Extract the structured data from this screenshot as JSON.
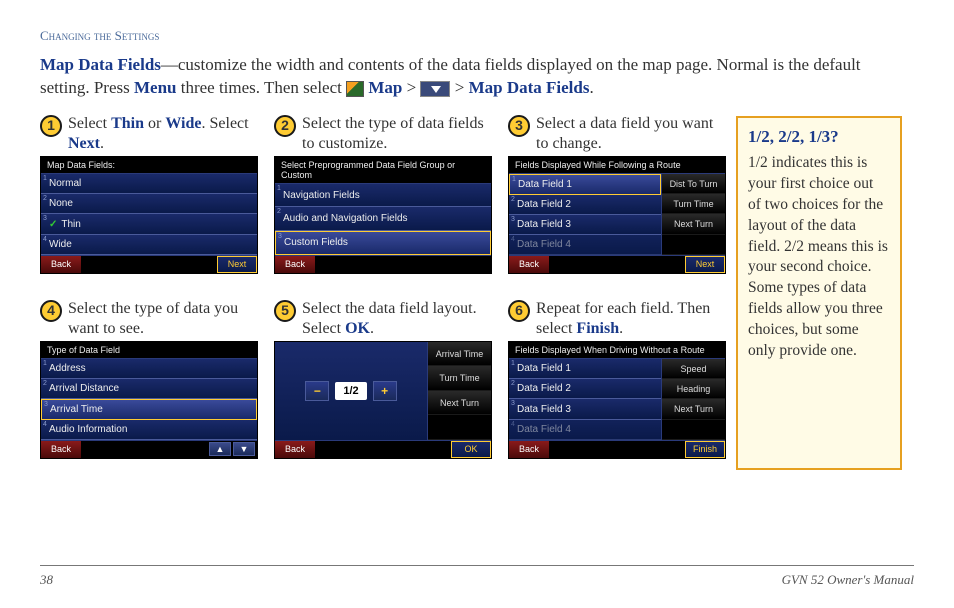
{
  "header": {
    "section": "Changing the Settings"
  },
  "intro": {
    "lead_bold": "Map Data Fields",
    "text_a": "—customize the width and contents of the data fields displayed on the map page. Normal is the default setting. Press ",
    "menu": "Menu",
    "text_b": " three times. Then select ",
    "map": "Map",
    "gt1": " > ",
    "gt2": " > ",
    "mdf": "Map Data Fields",
    "period": "."
  },
  "steps": [
    {
      "num": "1",
      "text_parts": [
        "Select ",
        "Thin",
        " or ",
        "Wide",
        ". Select ",
        "Next",
        "."
      ],
      "screen": {
        "title": "Map Data Fields:",
        "rows": [
          {
            "label": "Normal",
            "corner": "1"
          },
          {
            "label": "None",
            "corner": "2"
          },
          {
            "label": "Thin",
            "check": true,
            "corner": "3"
          },
          {
            "label": "Wide",
            "corner": "4"
          }
        ],
        "foot": {
          "back": "Back",
          "next": "Next"
        }
      }
    },
    {
      "num": "2",
      "text_parts": [
        "Select the type of data fields to customize."
      ],
      "screen": {
        "title": "Select Preprogrammed Data Field Group or Custom",
        "rows": [
          {
            "label": "Navigation Fields",
            "corner": "1"
          },
          {
            "label": "Audio and Navigation Fields",
            "corner": "2"
          },
          {
            "label": "Custom Fields",
            "sel": true,
            "corner": "3"
          }
        ],
        "foot": {
          "back": "Back"
        }
      }
    },
    {
      "num": "3",
      "text_parts": [
        "Select a data field you want to change."
      ],
      "screen": {
        "title": "Fields Displayed While Following a Route",
        "twocol": true,
        "rows": [
          {
            "label": "Data Field 1",
            "sel": true,
            "corner": "1"
          },
          {
            "label": "Data Field 2",
            "corner": "2"
          },
          {
            "label": "Data Field 3",
            "corner": "3"
          },
          {
            "label": "Data Field 4",
            "dim": true,
            "corner": "4"
          }
        ],
        "side": [
          "Dist To Turn",
          "Turn Time",
          "Next Turn",
          ""
        ],
        "foot": {
          "back": "Back",
          "next": "Next"
        }
      }
    },
    {
      "num": "4",
      "text_parts": [
        "Select the type of data you want to see."
      ],
      "screen": {
        "title": "Type of Data Field",
        "rows": [
          {
            "label": "Address",
            "corner": "1"
          },
          {
            "label": "Arrival Distance",
            "corner": "2"
          },
          {
            "label": "Arrival Time",
            "sel": true,
            "corner": "3"
          },
          {
            "label": "Audio Information",
            "corner": "4"
          }
        ],
        "foot": {
          "back": "Back",
          "arrows": true
        }
      }
    },
    {
      "num": "5",
      "text_parts": [
        "Select the data field layout. Select ",
        "OK",
        "."
      ],
      "screen": {
        "layout": true,
        "layout_label": "1/2",
        "side": [
          "Arrival Time",
          "Turn Time",
          "Next Turn",
          ""
        ],
        "foot": {
          "back": "Back",
          "next": "OK"
        }
      }
    },
    {
      "num": "6",
      "text_parts": [
        "Repeat for each field. Then select ",
        "Finish",
        "."
      ],
      "screen": {
        "title": "Fields Displayed When Driving Without a Route",
        "twocol": true,
        "rows": [
          {
            "label": "Data Field 1",
            "corner": "1"
          },
          {
            "label": "Data Field 2",
            "corner": "2"
          },
          {
            "label": "Data Field 3",
            "corner": "3"
          },
          {
            "label": "Data Field 4",
            "dim": true,
            "corner": "4"
          }
        ],
        "side": [
          "Speed",
          "Heading",
          "Next Turn",
          ""
        ],
        "foot": {
          "back": "Back",
          "next": "Finish"
        }
      }
    }
  ],
  "sidebar": {
    "title": "1/2, 2/2, 1/3?",
    "body": "1/2 indicates this is your first choice out of two choices for the layout of the data field. 2/2 means this is your second choice. Some types of data fields allow you three choices, but some only provide one."
  },
  "footer": {
    "page": "38",
    "manual": "GVN 52 Owner's Manual"
  },
  "colors": {
    "accent_blue": "#1a3a8a",
    "screen_bg": "#0a1a4a",
    "highlight": "#ffcc33",
    "back_btn": "#8a1a1a",
    "sidebar_border": "#e6a020",
    "sidebar_bg": "#fffbe6"
  }
}
